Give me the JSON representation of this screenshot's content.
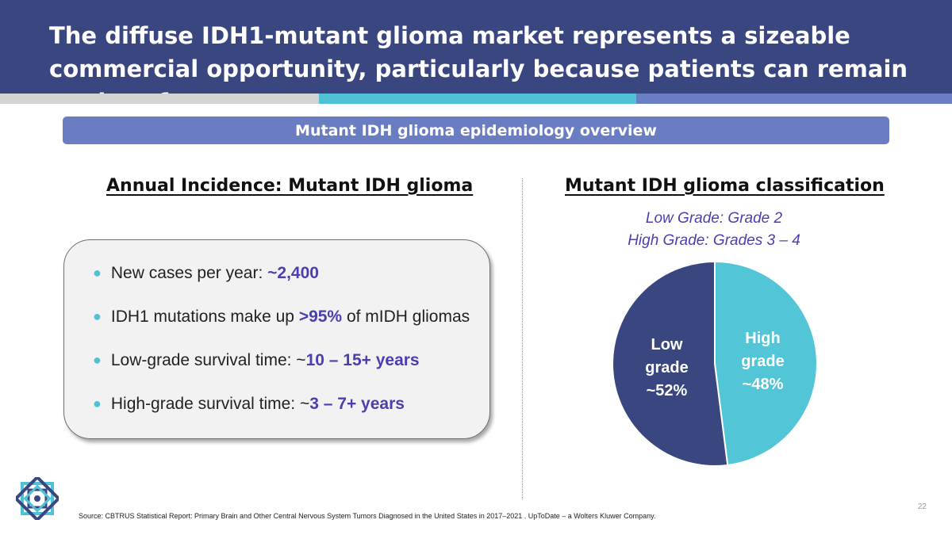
{
  "slide": {
    "title": "The diffuse IDH1-mutant glioma market represents a sizeable commercial opportunity, particularly because patients can remain on drug for years",
    "banner": "Mutant IDH glioma epidemiology overview",
    "page_number": "22",
    "source": "Source:  CBTRUS Statistical Report: Primary Brain and Other Central Nervous System Tumors Diagnosed in the United States in 2017–2021 . UpToDate – a Wolters Kluwer Company."
  },
  "left": {
    "heading": "Annual Incidence: Mutant IDH glioma",
    "bullets": [
      {
        "pre": "New cases per year: ",
        "hl": "~2,400",
        "post": ""
      },
      {
        "pre": "IDH1 mutations make up ",
        "hl": ">95%",
        "post": " of mIDH gliomas"
      },
      {
        "pre": "Low-grade survival time: ~",
        "hl": "10 – 15+ years",
        "post": ""
      },
      {
        "pre": "High-grade survival time: ~",
        "hl": "3 – 7+ years",
        "post": ""
      }
    ]
  },
  "right": {
    "heading": "Mutant IDH glioma classification",
    "subtitle_line1": "Low Grade: Grade 2",
    "subtitle_line2": "High Grade: Grades 3 – 4"
  },
  "colors": {
    "header": "#3a4680",
    "accent_teal": "#4fc3d5",
    "accent_blue": "#6a7dc2",
    "highlight": "#4b3fb0"
  },
  "chart_data": {
    "type": "pie",
    "title": "",
    "slices": [
      {
        "label_lines": [
          "High",
          "grade",
          "~48%"
        ],
        "value": 48,
        "color": "#52c5d6"
      },
      {
        "label_lines": [
          "Low",
          "grade",
          "~52%"
        ],
        "value": 52,
        "color": "#3a4680"
      }
    ]
  }
}
